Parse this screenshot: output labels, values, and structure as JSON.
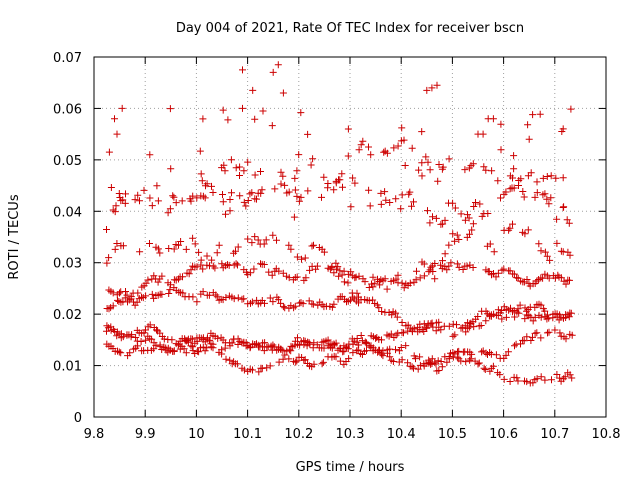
{
  "chart_data": {
    "type": "scatter",
    "title": "Day 004 of 2021, Rate Of TEC Index for receiver bscn",
    "xlabel": "GPS time / hours",
    "ylabel": "ROTI / TECUs",
    "xlim": [
      9.8,
      10.8
    ],
    "ylim": [
      0,
      0.07
    ],
    "x_ticks": [
      "9.8",
      "9.9",
      "10",
      "10.1",
      "10.2",
      "10.3",
      "10.4",
      "10.5",
      "10.6",
      "10.7",
      "10.8"
    ],
    "y_ticks": [
      "0",
      "0.01",
      "0.02",
      "0.03",
      "0.04",
      "0.05",
      "0.06",
      "0.07"
    ],
    "grid": true,
    "marker": "plus",
    "color": "#cc0000",
    "seed": 4021,
    "x_range_data": [
      9.825,
      10.735
    ],
    "points_sample": [
      [
        9.83,
        0.0515
      ],
      [
        9.84,
        0.058
      ],
      [
        9.845,
        0.055
      ],
      [
        9.855,
        0.06
      ],
      [
        10.09,
        0.0675
      ],
      [
        10.16,
        0.0685
      ],
      [
        10.15,
        0.067
      ],
      [
        10.17,
        0.063
      ],
      [
        10.11,
        0.0635
      ],
      [
        10.13,
        0.0595
      ],
      [
        10.09,
        0.06
      ],
      [
        10.46,
        0.064
      ],
      [
        10.47,
        0.0645
      ],
      [
        10.45,
        0.0635
      ],
      [
        10.57,
        0.058
      ],
      [
        10.58,
        0.058
      ],
      [
        10.65,
        0.054
      ],
      [
        10.55,
        0.055
      ],
      [
        10.56,
        0.055
      ],
      [
        10.44,
        0.0555
      ]
    ]
  }
}
